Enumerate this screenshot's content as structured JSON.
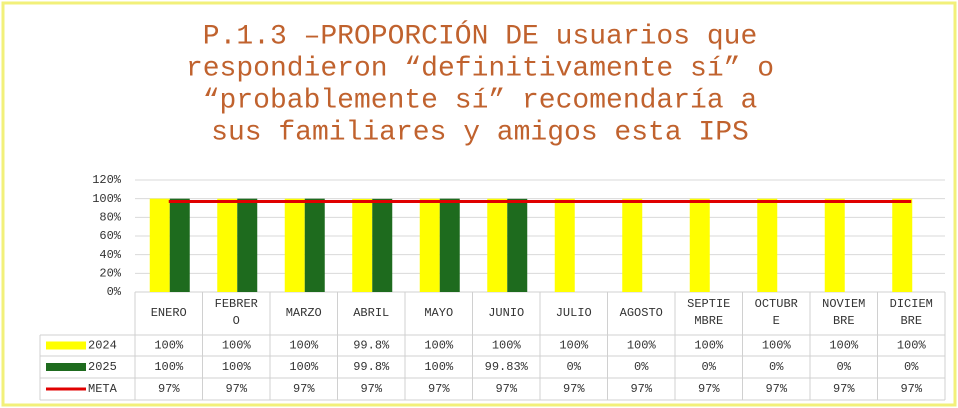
{
  "chart_data": {
    "type": "bar",
    "title": [
      "P.1.3 –PROPORCIÓN DE  usuarios que",
      "respondieron “definitivamente sí” o",
      "“probablemente sí” recomendaría a",
      "sus familiares y amigos esta IPS"
    ],
    "categories": [
      "ENERO",
      "FEBRERO",
      "MARZO",
      "ABRIL",
      "MAYO",
      "JUNIO",
      "JULIO",
      "AGOSTO",
      "SEPTIEMBRE",
      "OCTUBRE",
      "NOVIEMBRE",
      "DICIEMBRE"
    ],
    "series": [
      {
        "name": "2024",
        "color": "#ffff00",
        "type": "bar",
        "values": [
          100,
          100,
          100,
          99.8,
          100,
          100,
          100,
          100,
          100,
          100,
          100,
          100
        ],
        "value_labels": [
          "100%",
          "100%",
          "100%",
          "99.8%",
          "100%",
          "100%",
          "100%",
          "100%",
          "100%",
          "100%",
          "100%",
          "100%"
        ]
      },
      {
        "name": "2025",
        "color": "#1e6b1e",
        "type": "bar",
        "values": [
          100,
          100,
          100,
          99.8,
          100,
          99.83,
          0,
          0,
          0,
          0,
          0,
          0
        ],
        "value_labels": [
          "100%",
          "100%",
          "100%",
          "99.8%",
          "100%",
          "99.83%",
          "0%",
          "0%",
          "0%",
          "0%",
          "0%",
          "0%"
        ]
      },
      {
        "name": "META",
        "color": "#e00000",
        "type": "line",
        "values": [
          97,
          97,
          97,
          97,
          97,
          97,
          97,
          97,
          97,
          97,
          97,
          97
        ],
        "value_labels": [
          "97%",
          "97%",
          "97%",
          "97%",
          "97%",
          "97%",
          "97%",
          "97%",
          "97%",
          "97%",
          "97%",
          "97%"
        ]
      }
    ],
    "ylim": [
      0,
      120
    ],
    "yticks": [
      {
        "value": 0,
        "label": "0%"
      },
      {
        "value": 20,
        "label": "20%"
      },
      {
        "value": 40,
        "label": "40%"
      },
      {
        "value": 60,
        "label": "60%"
      },
      {
        "value": 80,
        "label": "80%"
      },
      {
        "value": 100,
        "label": "100%"
      },
      {
        "value": 120,
        "label": "120%"
      }
    ],
    "grid": true
  }
}
